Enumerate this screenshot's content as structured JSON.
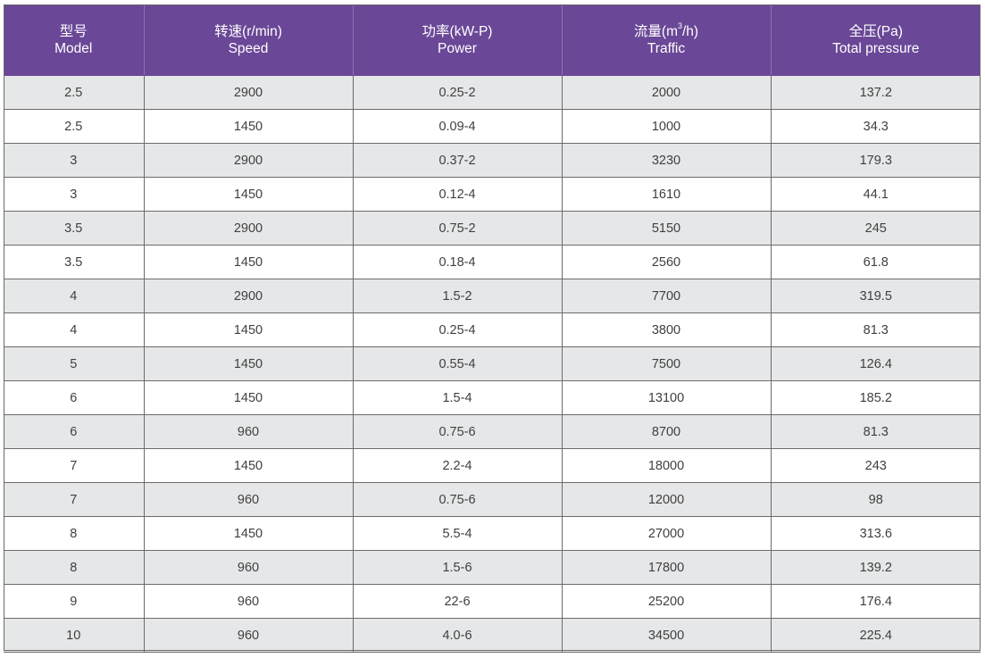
{
  "table": {
    "headers": [
      {
        "zh": "型号",
        "en": "Model"
      },
      {
        "zh": "转速(r/min)",
        "en": "Speed"
      },
      {
        "zh": "功率(kW-P)",
        "en": "Power"
      },
      {
        "zh_pre": "流量(m",
        "zh_sup": "3",
        "zh_post": "/h)",
        "en": "Traffic"
      },
      {
        "zh": "全压(Pa)",
        "en": "Total pressure"
      }
    ],
    "rows": [
      [
        "2.5",
        "2900",
        "0.25-2",
        "2000",
        "137.2"
      ],
      [
        "2.5",
        "1450",
        "0.09-4",
        "1000",
        "34.3"
      ],
      [
        "3",
        "2900",
        "0.37-2",
        "3230",
        "179.3"
      ],
      [
        "3",
        "1450",
        "0.12-4",
        "1610",
        "44.1"
      ],
      [
        "3.5",
        "2900",
        "0.75-2",
        "5150",
        "245"
      ],
      [
        "3.5",
        "1450",
        "0.18-4",
        "2560",
        "61.8"
      ],
      [
        "4",
        "2900",
        "1.5-2",
        "7700",
        "319.5"
      ],
      [
        "4",
        "1450",
        "0.25-4",
        "3800",
        "81.3"
      ],
      [
        "5",
        "1450",
        "0.55-4",
        "7500",
        "126.4"
      ],
      [
        "6",
        "1450",
        "1.5-4",
        "13100",
        "185.2"
      ],
      [
        "6",
        "960",
        "0.75-6",
        "8700",
        "81.3"
      ],
      [
        "7",
        "1450",
        "2.2-4",
        "18000",
        "243"
      ],
      [
        "7",
        "960",
        "0.75-6",
        "12000",
        "98"
      ],
      [
        "8",
        "1450",
        "5.5-4",
        "27000",
        "313.6"
      ],
      [
        "8",
        "960",
        "1.5-6",
        "17800",
        "139.2"
      ],
      [
        "9",
        "960",
        "22-6",
        "25200",
        "176.4"
      ],
      [
        "10",
        "960",
        "4.0-6",
        "34500",
        "225.4"
      ]
    ]
  }
}
